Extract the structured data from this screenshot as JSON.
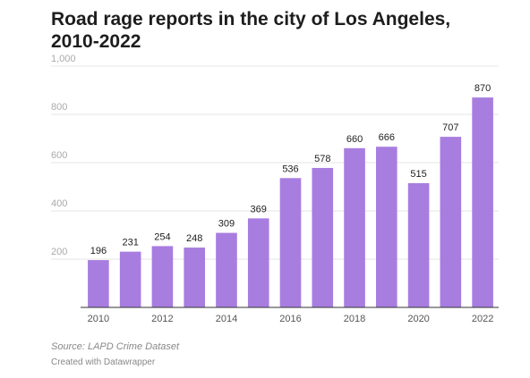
{
  "chart_data": {
    "type": "bar",
    "title": "Road rage reports in the city of Los Angeles, 2010-2022",
    "xlabel": "",
    "ylabel": "",
    "categories": [
      "2010",
      "2011",
      "2012",
      "2013",
      "2014",
      "2015",
      "2016",
      "2017",
      "2018",
      "2019",
      "2020",
      "2021",
      "2022"
    ],
    "x_tick_labels": [
      "2010",
      "",
      "2012",
      "",
      "2014",
      "",
      "2016",
      "",
      "2018",
      "",
      "2020",
      "",
      "2022"
    ],
    "values": [
      196,
      231,
      254,
      248,
      309,
      369,
      536,
      578,
      660,
      666,
      515,
      707,
      870
    ],
    "value_labels": [
      "196",
      "231",
      "254",
      "248",
      "309",
      "369",
      "536",
      "578",
      "660",
      "666",
      "515",
      "707",
      "870"
    ],
    "ylim": [
      0,
      1000
    ],
    "y_ticks": [
      200,
      400,
      600,
      800,
      1000
    ],
    "y_tick_labels": [
      "200",
      "400",
      "600",
      "800",
      "1,000"
    ],
    "grid": true,
    "legend": "none"
  },
  "colors": {
    "bar": "#a87de0",
    "grid": "#e4e4e4",
    "axis": "#333333"
  },
  "footer": {
    "source": "Source: LAPD Crime Dataset",
    "credit": "Created with Datawrapper"
  }
}
